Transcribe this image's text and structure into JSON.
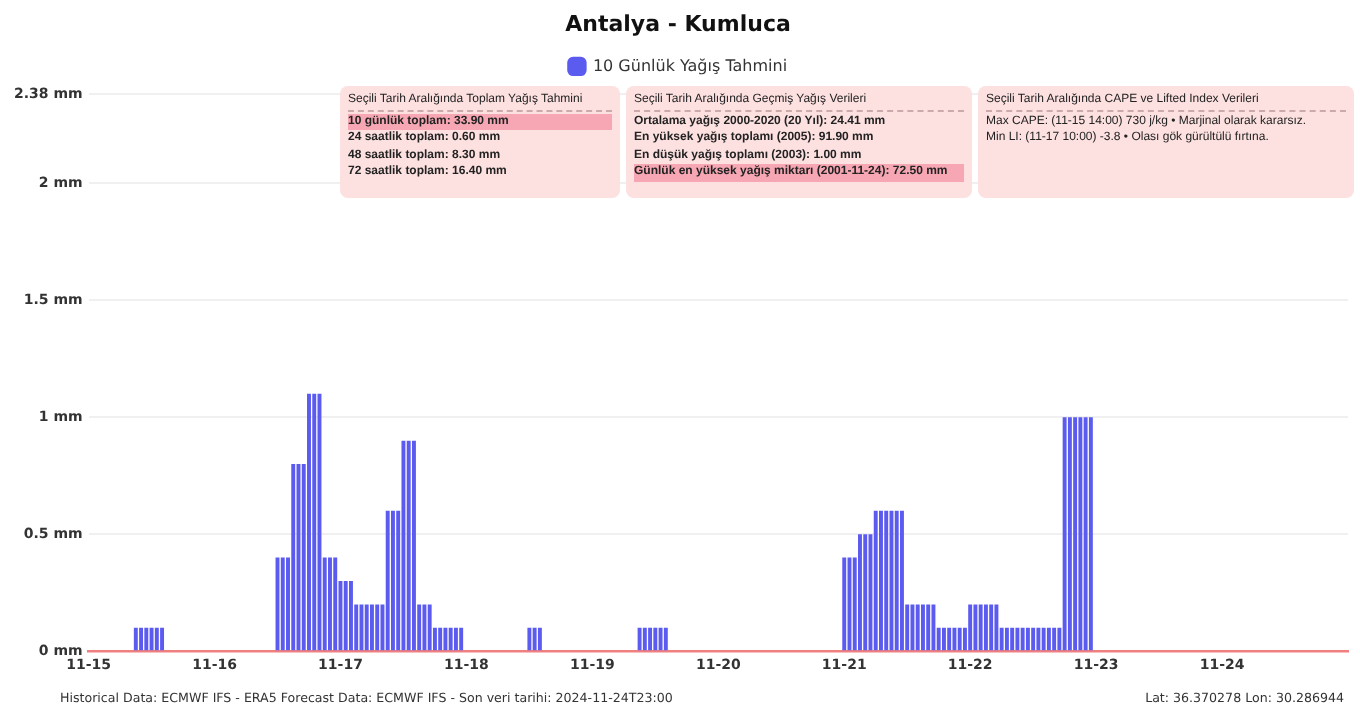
{
  "chart_data": {
    "type": "bar",
    "title": "Antalya - Kumluca",
    "legend": "top",
    "grid": "y",
    "xlim": [
      "2024-11-15",
      "2024-11-25"
    ],
    "xticks": [
      {
        "value": "2024-11-15",
        "label": "11-15"
      },
      {
        "value": "2024-11-16",
        "label": "11-16"
      },
      {
        "value": "2024-11-17",
        "label": "11-17"
      },
      {
        "value": "2024-11-18",
        "label": "11-18"
      },
      {
        "value": "2024-11-19",
        "label": "11-19"
      },
      {
        "value": "2024-11-20",
        "label": "11-20"
      },
      {
        "value": "2024-11-21",
        "label": "11-21"
      },
      {
        "value": "2024-11-22",
        "label": "11-22"
      },
      {
        "value": "2024-11-23",
        "label": "11-23"
      },
      {
        "value": "2024-11-24",
        "label": "11-24"
      }
    ],
    "ylim": [
      0,
      2.38
    ],
    "yticks": [
      {
        "value": 0,
        "label": "0 mm"
      },
      {
        "value": 0.5,
        "label": "0.5 mm"
      },
      {
        "value": 1,
        "label": "1 mm"
      },
      {
        "value": 1.5,
        "label": "1.5 mm"
      },
      {
        "value": 2,
        "label": "2 mm"
      },
      {
        "value": 2.38,
        "label": "2.38 mm"
      }
    ],
    "x": [
      "2024-11-15T09:00",
      "2024-11-15T10:00",
      "2024-11-15T11:00",
      "2024-11-15T12:00",
      "2024-11-15T13:00",
      "2024-11-15T14:00",
      "2024-11-16T12:00",
      "2024-11-16T13:00",
      "2024-11-16T14:00",
      "2024-11-16T15:00",
      "2024-11-16T16:00",
      "2024-11-16T17:00",
      "2024-11-16T18:00",
      "2024-11-16T19:00",
      "2024-11-16T20:00",
      "2024-11-16T21:00",
      "2024-11-16T22:00",
      "2024-11-16T23:00",
      "2024-11-17T00:00",
      "2024-11-17T01:00",
      "2024-11-17T02:00",
      "2024-11-17T03:00",
      "2024-11-17T04:00",
      "2024-11-17T05:00",
      "2024-11-17T06:00",
      "2024-11-17T07:00",
      "2024-11-17T08:00",
      "2024-11-17T09:00",
      "2024-11-17T10:00",
      "2024-11-17T11:00",
      "2024-11-17T12:00",
      "2024-11-17T13:00",
      "2024-11-17T14:00",
      "2024-11-17T15:00",
      "2024-11-17T16:00",
      "2024-11-17T17:00",
      "2024-11-17T18:00",
      "2024-11-17T19:00",
      "2024-11-17T20:00",
      "2024-11-17T21:00",
      "2024-11-17T22:00",
      "2024-11-17T23:00",
      "2024-11-18T12:00",
      "2024-11-18T13:00",
      "2024-11-18T14:00",
      "2024-11-19T09:00",
      "2024-11-19T10:00",
      "2024-11-19T11:00",
      "2024-11-19T12:00",
      "2024-11-19T13:00",
      "2024-11-19T14:00",
      "2024-11-21T00:00",
      "2024-11-21T01:00",
      "2024-11-21T02:00",
      "2024-11-21T03:00",
      "2024-11-21T04:00",
      "2024-11-21T05:00",
      "2024-11-21T06:00",
      "2024-11-21T07:00",
      "2024-11-21T08:00",
      "2024-11-21T09:00",
      "2024-11-21T10:00",
      "2024-11-21T11:00",
      "2024-11-21T12:00",
      "2024-11-21T13:00",
      "2024-11-21T14:00",
      "2024-11-21T15:00",
      "2024-11-21T16:00",
      "2024-11-21T17:00",
      "2024-11-21T18:00",
      "2024-11-21T19:00",
      "2024-11-21T20:00",
      "2024-11-21T21:00",
      "2024-11-21T22:00",
      "2024-11-21T23:00",
      "2024-11-22T00:00",
      "2024-11-22T01:00",
      "2024-11-22T02:00",
      "2024-11-22T03:00",
      "2024-11-22T04:00",
      "2024-11-22T05:00",
      "2024-11-22T06:00",
      "2024-11-22T07:00",
      "2024-11-22T08:00",
      "2024-11-22T09:00",
      "2024-11-22T10:00",
      "2024-11-22T11:00",
      "2024-11-22T12:00",
      "2024-11-22T13:00",
      "2024-11-22T14:00",
      "2024-11-22T15:00",
      "2024-11-22T16:00",
      "2024-11-22T17:00",
      "2024-11-22T18:00",
      "2024-11-22T19:00",
      "2024-11-22T20:00",
      "2024-11-22T21:00",
      "2024-11-22T22:00",
      "2024-11-22T23:00"
    ],
    "series": [
      {
        "name": "10 Günlük Yağış Tahmini",
        "color": "#5b5bf0",
        "values": [
          0.1,
          0.1,
          0.1,
          0.1,
          0.1,
          0.1,
          0.4,
          0.4,
          0.4,
          0.8,
          0.8,
          0.8,
          1.1,
          1.1,
          1.1,
          0.4,
          0.4,
          0.4,
          0.3,
          0.3,
          0.3,
          0.2,
          0.2,
          0.2,
          0.2,
          0.2,
          0.2,
          0.6,
          0.6,
          0.6,
          0.9,
          0.9,
          0.9,
          0.2,
          0.2,
          0.2,
          0.1,
          0.1,
          0.1,
          0.1,
          0.1,
          0.1,
          0.1,
          0.1,
          0.1,
          0.1,
          0.1,
          0.1,
          0.1,
          0.1,
          0.1,
          0.4,
          0.4,
          0.4,
          0.5,
          0.5,
          0.5,
          0.6,
          0.6,
          0.6,
          0.6,
          0.6,
          0.6,
          0.2,
          0.2,
          0.2,
          0.2,
          0.2,
          0.2,
          0.1,
          0.1,
          0.1,
          0.1,
          0.1,
          0.1,
          0.2,
          0.2,
          0.2,
          0.2,
          0.2,
          0.2,
          0.1,
          0.1,
          0.1,
          0.1,
          0.1,
          0.1,
          0.1,
          0.1,
          0.1,
          0.1,
          0.1,
          0.1,
          1,
          1,
          1,
          1,
          1,
          1
        ]
      }
    ],
    "annotations": [
      "Seçili Tarih Aralığında Toplam Yağış Tahmini",
      "10 günlük toplam: 33.90 mm",
      "24 saatlik toplam: 0.60 mm",
      "48 saatlik toplam: 8.30 mm",
      "72 saatlik toplam: 16.40 mm",
      "Seçili Tarih Aralığında Geçmiş Yağış Verileri",
      "Ortalama yağış 2000-2020 (20 Yıl): 24.41 mm",
      "En yüksek yağış toplamı (2005): 91.90 mm",
      "En düşük yağış toplamı (2003): 1.00 mm",
      "Günlük en yüksek yağış miktarı (2001-11-24): 72.50 mm",
      "Seçili Tarih Aralığında CAPE ve Lifted Index Verileri",
      "Max CAPE: (11-15 14:00) 730 j/kg • Marjinal olarak kararsız.",
      "Min LI: (11-17 10:00) -3.8 • Olası gök gürültülü fırtına.",
      "Historical Data: ECMWF IFS - ERA5  Forecast Data: ECMWF IFS -  Son veri tarihi: 2024-11-24T23:00",
      "Lat: 36.370278  Lon: 30.286944"
    ]
  }
}
